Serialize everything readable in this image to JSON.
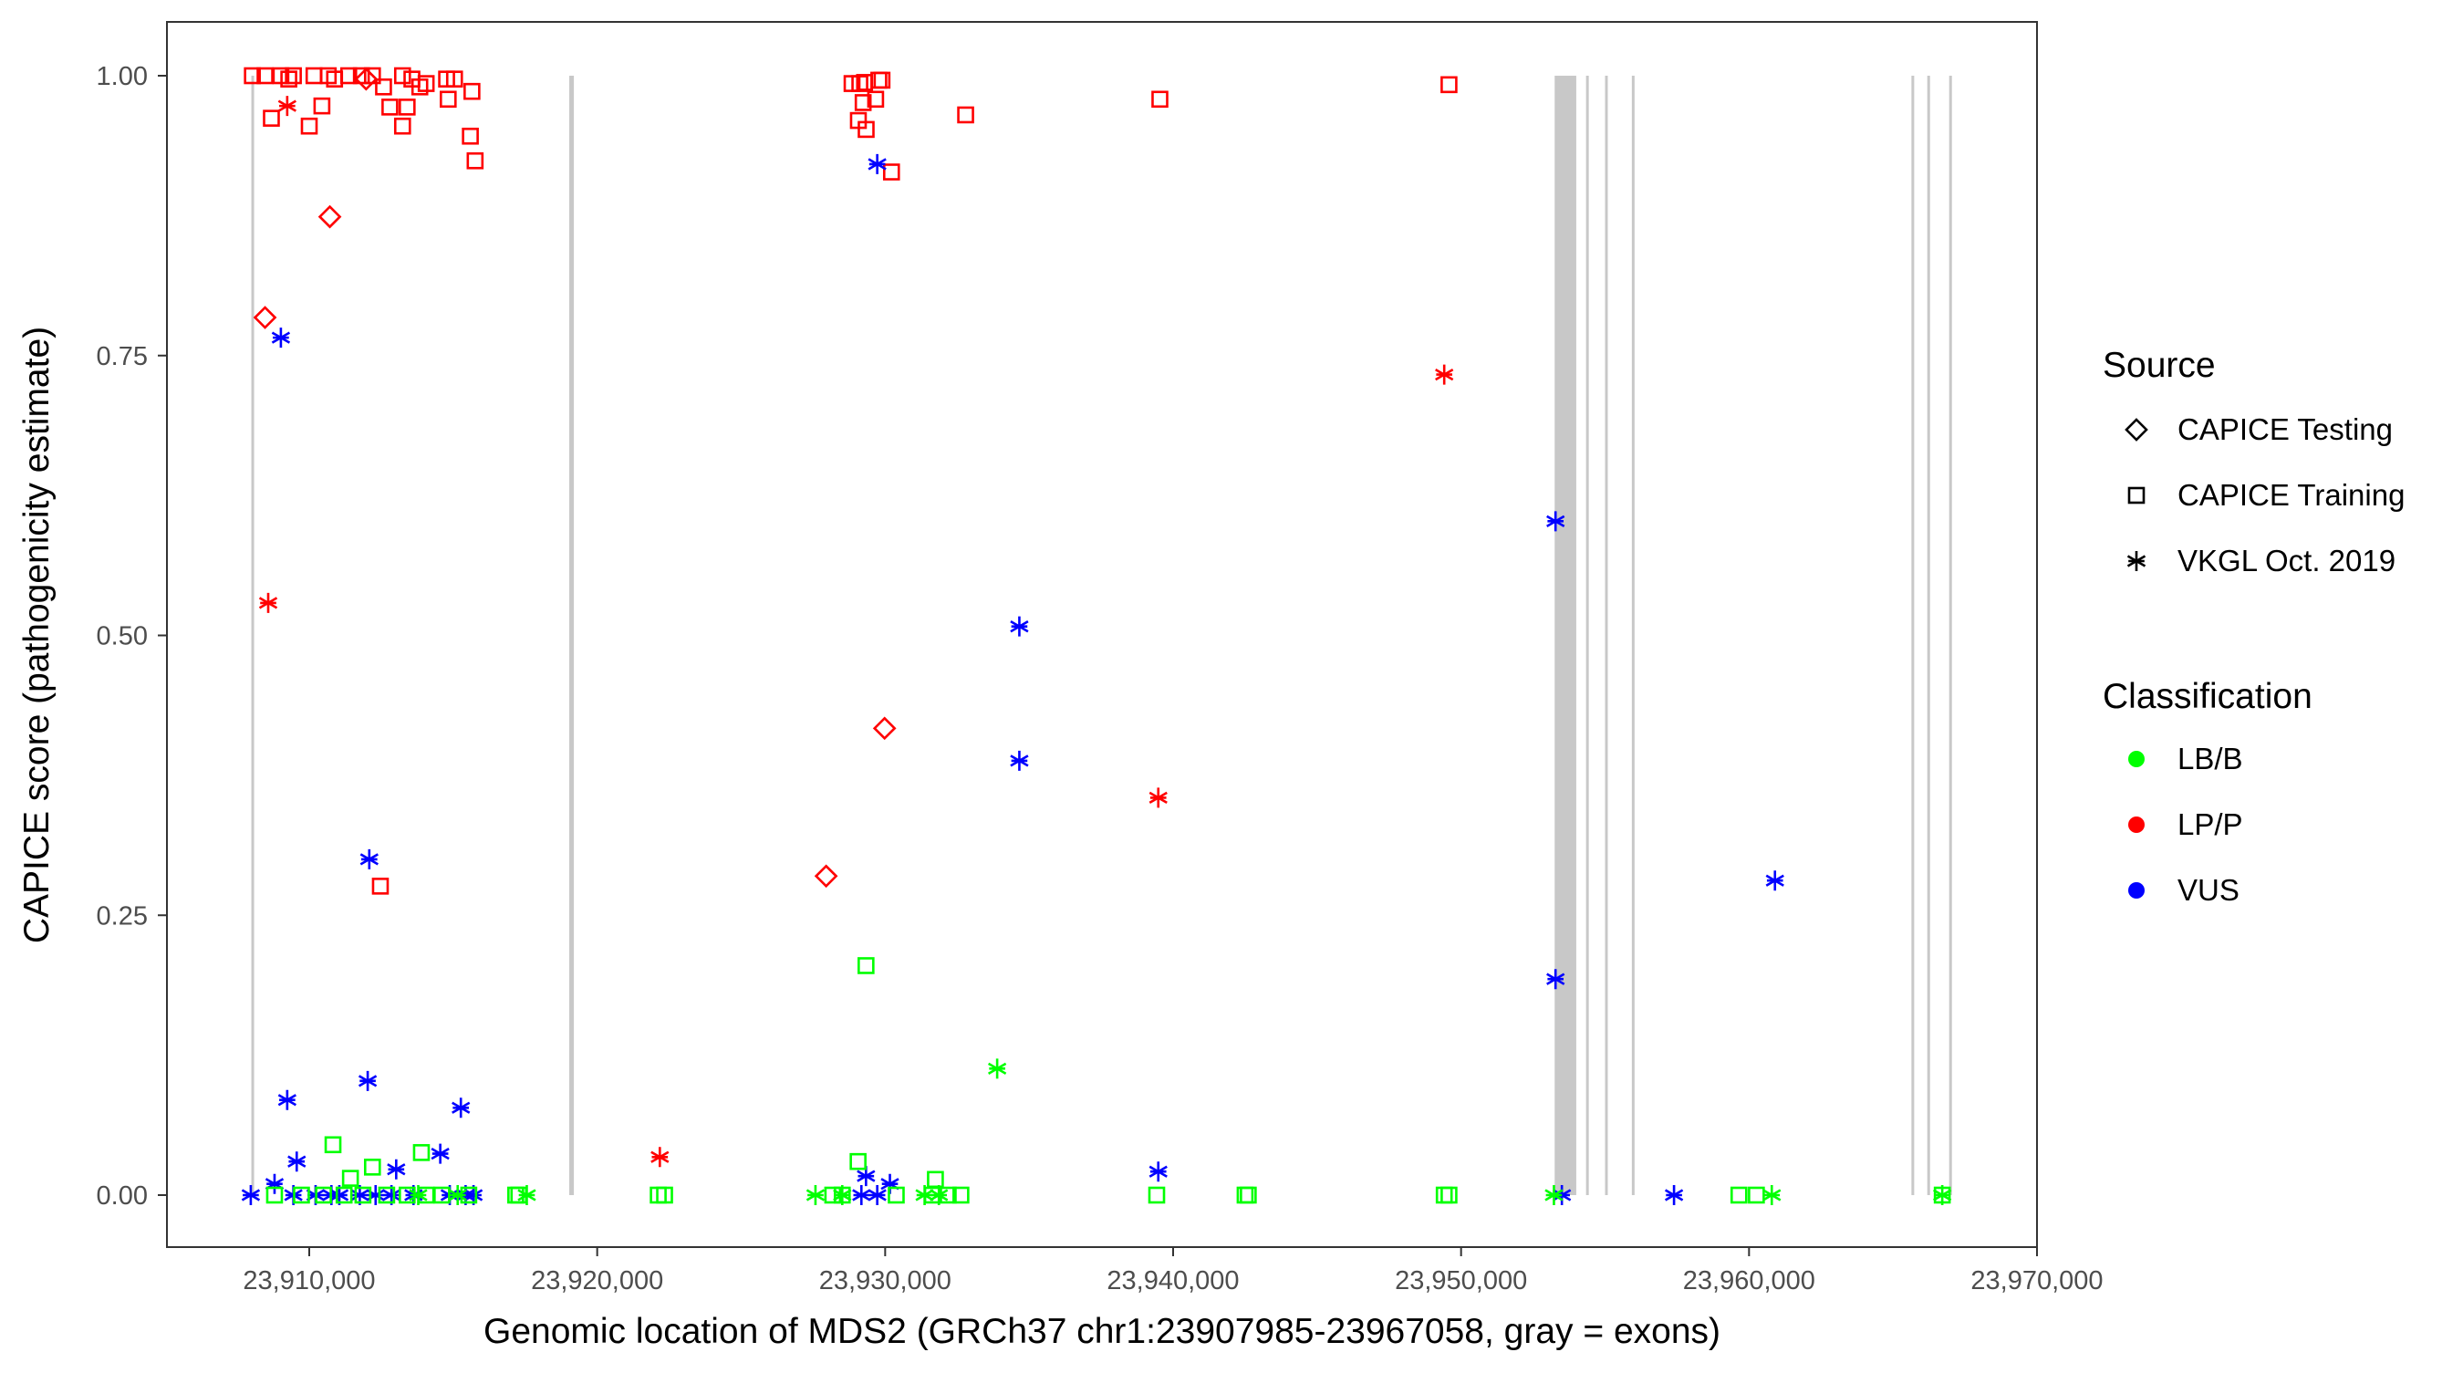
{
  "chart_data": {
    "type": "scatter",
    "xlabel": "Genomic location of MDS2 (GRCh37 chr1:23907985-23967058, gray = exons)",
    "ylabel": "CAPICE score (pathogenicity estimate)",
    "xlim": [
      23905000,
      23970000
    ],
    "ylim": [
      -0.045,
      1.045
    ],
    "x_ticks": [
      23910000,
      23920000,
      23930000,
      23940000,
      23950000,
      23960000,
      23970000
    ],
    "x_tick_labels": [
      "23,910,000",
      "23,920,000",
      "23,930,000",
      "23,940,000",
      "23,950,000",
      "23,960,000",
      "23,970,000"
    ],
    "y_ticks": [
      0,
      0.25,
      0.5,
      0.75,
      1.0
    ],
    "y_tick_labels": [
      "0.00",
      "0.25",
      "0.50",
      "0.75",
      "1.00"
    ],
    "grid": false,
    "legend_position": "right",
    "exon_color": "#c8c8c8",
    "exons": [
      [
        23907990,
        23908060
      ],
      [
        23919030,
        23919190
      ],
      [
        23953250,
        23954000
      ],
      [
        23954340,
        23954410
      ],
      [
        23955000,
        23955070
      ],
      [
        23955930,
        23956000
      ],
      [
        23965640,
        23965710
      ],
      [
        23966190,
        23966260
      ],
      [
        23966950,
        23967040
      ]
    ],
    "legend": {
      "source_title": "Source",
      "sources": [
        {
          "name": "CAPICE Testing",
          "shape": "diamond"
        },
        {
          "name": "CAPICE Training",
          "shape": "square"
        },
        {
          "name": "VKGL Oct. 2019",
          "shape": "asterisk"
        }
      ],
      "classification_title": "Classification",
      "classifications": [
        {
          "name": "LB/B",
          "color": "#00ff00"
        },
        {
          "name": "LP/P",
          "color": "#ff0000"
        },
        {
          "name": "VUS",
          "color": "#0000ff"
        }
      ]
    },
    "series": [
      {
        "source": "CAPICE Training",
        "classification": "LP/P",
        "points": [
          [
            23908025,
            1.0
          ],
          [
            23908465,
            1.0
          ],
          [
            23908685,
            0.962
          ],
          [
            23909015,
            1.0
          ],
          [
            23909290,
            0.997
          ],
          [
            23909450,
            1.0
          ],
          [
            23910000,
            0.955
          ],
          [
            23910165,
            1.0
          ],
          [
            23910440,
            0.973
          ],
          [
            23910660,
            1.0
          ],
          [
            23910880,
            0.997
          ],
          [
            23911370,
            1.0
          ],
          [
            23911810,
            1.0
          ],
          [
            23912195,
            1.0
          ],
          [
            23912580,
            0.99
          ],
          [
            23912800,
            0.972
          ],
          [
            23913240,
            1.0
          ],
          [
            23913240,
            0.955
          ],
          [
            23913400,
            0.972
          ],
          [
            23913565,
            0.997
          ],
          [
            23913840,
            0.99
          ],
          [
            23914060,
            0.993
          ],
          [
            23914770,
            0.997
          ],
          [
            23914825,
            0.979
          ],
          [
            23915045,
            0.997
          ],
          [
            23915595,
            0.946
          ],
          [
            23915650,
            0.986
          ],
          [
            23915760,
            0.924
          ],
          [
            23912470,
            0.276
          ],
          [
            23928850,
            0.993
          ],
          [
            23929120,
            0.993
          ],
          [
            23929285,
            0.994
          ],
          [
            23929070,
            0.96
          ],
          [
            23929235,
            0.976
          ],
          [
            23929340,
            0.952
          ],
          [
            23929670,
            0.979
          ],
          [
            23929780,
            0.996
          ],
          [
            23929890,
            0.996
          ],
          [
            23930220,
            0.914
          ],
          [
            23932795,
            0.965
          ],
          [
            23939540,
            0.979
          ],
          [
            23949580,
            0.992
          ]
        ]
      },
      {
        "source": "CAPICE Testing",
        "classification": "LP/P",
        "points": [
          [
            23908465,
            0.784
          ],
          [
            23910715,
            0.874
          ],
          [
            23911975,
            0.997
          ],
          [
            23927950,
            0.285
          ],
          [
            23929980,
            0.417
          ]
        ]
      },
      {
        "source": "VKGL Oct. 2019",
        "classification": "LP/P",
        "points": [
          [
            23909235,
            0.973
          ],
          [
            23908575,
            0.529
          ],
          [
            23922175,
            0.034
          ],
          [
            23939485,
            0.355
          ],
          [
            23949415,
            0.733
          ]
        ]
      },
      {
        "source": "VKGL Oct. 2019",
        "classification": "VUS",
        "points": [
          [
            23909015,
            0.766
          ],
          [
            23929725,
            0.921
          ],
          [
            23934660,
            0.508
          ],
          [
            23934660,
            0.388
          ],
          [
            23953280,
            0.602
          ],
          [
            23953280,
            0.193
          ],
          [
            23960900,
            0.281
          ],
          [
            23912085,
            0.3
          ],
          [
            23912030,
            0.102
          ],
          [
            23909235,
            0.085
          ],
          [
            23915265,
            0.078
          ],
          [
            23909565,
            0.03
          ],
          [
            23914550,
            0.037
          ],
          [
            23913020,
            0.023
          ],
          [
            23908795,
            0.01
          ],
          [
            23939485,
            0.021
          ],
          [
            23929335,
            0.017
          ],
          [
            23930165,
            0.01
          ],
          [
            23907970,
            0
          ],
          [
            23909450,
            0
          ],
          [
            23910220,
            0
          ],
          [
            23910770,
            0
          ],
          [
            23911045,
            0
          ],
          [
            23911755,
            0
          ],
          [
            23912305,
            0
          ],
          [
            23912855,
            0
          ],
          [
            23913620,
            0
          ],
          [
            23914880,
            0
          ],
          [
            23915430,
            0
          ],
          [
            23915705,
            0
          ],
          [
            23929175,
            0
          ],
          [
            23929725,
            0
          ],
          [
            23953500,
            0
          ],
          [
            23957395,
            0
          ]
        ]
      },
      {
        "source": "CAPICE Training",
        "classification": "LB/B",
        "points": [
          [
            23910825,
            0.045
          ],
          [
            23913895,
            0.038
          ],
          [
            23912195,
            0.025
          ],
          [
            23911430,
            0.015
          ],
          [
            23929335,
            0.205
          ],
          [
            23929060,
            0.03
          ],
          [
            23931745,
            0.014
          ],
          [
            23908795,
            0
          ],
          [
            23909730,
            0
          ],
          [
            23910495,
            0
          ],
          [
            23911210,
            0
          ],
          [
            23911865,
            0
          ],
          [
            23912690,
            0
          ],
          [
            23913400,
            0
          ],
          [
            23914060,
            0
          ],
          [
            23914605,
            0
          ],
          [
            23915540,
            0
          ],
          [
            23917170,
            0
          ],
          [
            23917280,
            0
          ],
          [
            23922120,
            0
          ],
          [
            23922340,
            0
          ],
          [
            23928180,
            0
          ],
          [
            23928510,
            0
          ],
          [
            23930385,
            0
          ],
          [
            23931640,
            0
          ],
          [
            23932190,
            0
          ],
          [
            23932630,
            0
          ],
          [
            23939430,
            0
          ],
          [
            23942500,
            0
          ],
          [
            23942610,
            0
          ],
          [
            23949415,
            0
          ],
          [
            23949580,
            0
          ],
          [
            23959650,
            0
          ],
          [
            23960255,
            0
          ],
          [
            23966710,
            0
          ]
        ]
      },
      {
        "source": "VKGL Oct. 2019",
        "classification": "LB/B",
        "points": [
          [
            23933890,
            0.113
          ],
          [
            23917555,
            0
          ],
          [
            23927580,
            0
          ],
          [
            23928510,
            0
          ],
          [
            23931370,
            0
          ],
          [
            23931865,
            0
          ],
          [
            23953225,
            0
          ],
          [
            23960790,
            0
          ],
          [
            23966710,
            0
          ],
          [
            23913785,
            0
          ],
          [
            23915155,
            0
          ]
        ]
      }
    ]
  }
}
